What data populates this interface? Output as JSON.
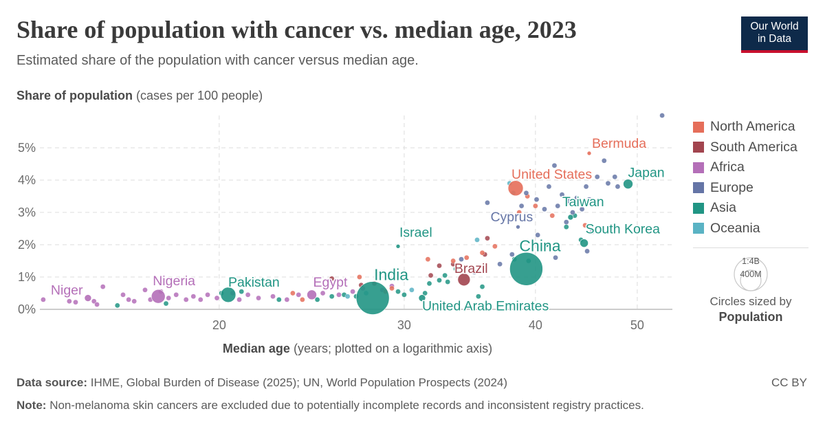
{
  "header": {
    "title": "Share of population with cancer vs. median age, 2023",
    "subtitle": "Estimated share of the population with cancer versus median age."
  },
  "logo": {
    "line1": "Our World",
    "line2": "in Data"
  },
  "footer": {
    "source_label": "Data source:",
    "source_text": "IHME, Global Burden of Disease (2025); UN, World Population Prospects (2024)",
    "note_label": "Note:",
    "note_text": "Non-melanoma skin cancers are excluded due to potentially incomplete records and inconsistent registry practices.",
    "license": "CC BY"
  },
  "size_legend": {
    "large": "1:4B",
    "small": "400M",
    "caption": "Circles sized by",
    "caption_bold": "Population"
  },
  "chart_data": {
    "type": "scatter",
    "title": "Share of population with cancer vs. median age, 2023",
    "xlabel_bold": "Median age",
    "xlabel_rest": "(years; plotted on a logarithmic axis)",
    "ylabel_bold": "Share of population",
    "ylabel_rest": "(cases per 100 people)",
    "x_scale": "log",
    "xlim": [
      13.5,
      54
    ],
    "ylim": [
      0,
      6
    ],
    "x_ticks": [
      20,
      30,
      40,
      50
    ],
    "y_ticks": [
      0,
      1,
      2,
      3,
      4,
      5
    ],
    "y_tick_labels": [
      "0%",
      "1%",
      "2%",
      "3%",
      "4%",
      "5%"
    ],
    "grid": true,
    "legend_position": "right",
    "colors": {
      "North America": "#e56e5a",
      "South America": "#a2454f",
      "Africa": "#b46fb8",
      "Europe": "#6575a6",
      "Asia": "#219584",
      "Oceania": "#5ab3c4"
    },
    "legend": [
      "North America",
      "South America",
      "Africa",
      "Europe",
      "Asia",
      "Oceania"
    ],
    "labeled_points": [
      {
        "name": "Niger",
        "region": "Africa",
        "x": 15.0,
        "y": 0.35,
        "r": 5
      },
      {
        "name": "Nigeria",
        "region": "Africa",
        "x": 17.5,
        "y": 0.4,
        "r": 10
      },
      {
        "name": "Pakistan",
        "region": "Asia",
        "x": 20.4,
        "y": 0.45,
        "r": 11
      },
      {
        "name": "Egypt",
        "region": "Africa",
        "x": 24.5,
        "y": 0.45,
        "r": 7
      },
      {
        "name": "India",
        "region": "Asia",
        "x": 28.0,
        "y": 0.35,
        "r": 24
      },
      {
        "name": "United Arab Emirates",
        "region": "Asia",
        "x": 31.2,
        "y": 0.35,
        "r": 5
      },
      {
        "name": "Israel",
        "region": "Asia",
        "x": 29.6,
        "y": 1.95,
        "r": 3
      },
      {
        "name": "Brazil",
        "region": "South America",
        "x": 34.2,
        "y": 0.92,
        "r": 9
      },
      {
        "name": "China",
        "region": "Asia",
        "x": 39.2,
        "y": 1.25,
        "r": 24
      },
      {
        "name": "Cyprus",
        "region": "Europe",
        "x": 38.5,
        "y": 2.55,
        "r": 3
      },
      {
        "name": "United States",
        "region": "North America",
        "x": 38.3,
        "y": 3.75,
        "r": 11
      },
      {
        "name": "Bermuda",
        "region": "North America",
        "x": 45.0,
        "y": 4.83,
        "r": 3
      },
      {
        "name": "Japan",
        "region": "Asia",
        "x": 49.0,
        "y": 3.88,
        "r": 7
      },
      {
        "name": "Taiwan",
        "region": "Asia",
        "x": 43.2,
        "y": 2.85,
        "r": 4
      },
      {
        "name": "South Korea",
        "region": "Asia",
        "x": 44.5,
        "y": 2.05,
        "r": 6
      }
    ],
    "other_points": {
      "Africa": [
        [
          13.6,
          0.3
        ],
        [
          14.4,
          0.25
        ],
        [
          14.6,
          0.22
        ],
        [
          15.2,
          0.25
        ],
        [
          15.5,
          0.7
        ],
        [
          15.3,
          0.15
        ],
        [
          16.2,
          0.45
        ],
        [
          16.4,
          0.3
        ],
        [
          16.6,
          0.25
        ],
        [
          17.0,
          0.6
        ],
        [
          17.2,
          0.3
        ],
        [
          17.6,
          0.55
        ],
        [
          17.9,
          0.35
        ],
        [
          18.2,
          0.45
        ],
        [
          18.6,
          0.3
        ],
        [
          18.9,
          0.4
        ],
        [
          19.2,
          0.3
        ],
        [
          19.5,
          0.45
        ],
        [
          19.9,
          0.35
        ],
        [
          20.6,
          0.5
        ],
        [
          20.9,
          0.3
        ],
        [
          21.3,
          0.45
        ],
        [
          21.8,
          0.35
        ],
        [
          22.5,
          0.4
        ],
        [
          23.2,
          0.3
        ],
        [
          23.8,
          0.45
        ],
        [
          25.1,
          0.5
        ],
        [
          26.0,
          0.45
        ],
        [
          26.8,
          0.55
        ],
        [
          27.4,
          0.65
        ],
        [
          28.6,
          0.6
        ],
        [
          29.2,
          0.72
        ]
      ],
      "Asia": [
        [
          16.0,
          0.12
        ],
        [
          17.8,
          0.18
        ],
        [
          20.1,
          0.5
        ],
        [
          21.0,
          0.55
        ],
        [
          22.8,
          0.3
        ],
        [
          24.8,
          0.3
        ],
        [
          25.6,
          0.4
        ],
        [
          26.3,
          0.45
        ],
        [
          27.0,
          0.4
        ],
        [
          29.6,
          0.55
        ],
        [
          30.0,
          0.45
        ],
        [
          31.4,
          0.5
        ],
        [
          31.7,
          0.8
        ],
        [
          32.4,
          0.9
        ],
        [
          32.8,
          1.05
        ],
        [
          33.0,
          0.85
        ],
        [
          33.6,
          1.25
        ],
        [
          35.3,
          0.4
        ],
        [
          35.6,
          0.7
        ],
        [
          38.2,
          1.55
        ],
        [
          39.4,
          1.5
        ],
        [
          41.0,
          2.0
        ],
        [
          42.8,
          2.55
        ],
        [
          43.6,
          2.9
        ],
        [
          44.2,
          2.15
        ]
      ],
      "South America": [
        [
          25.6,
          0.95
        ],
        [
          27.3,
          0.75
        ],
        [
          28.1,
          0.8
        ],
        [
          31.8,
          1.05
        ],
        [
          32.4,
          1.35
        ],
        [
          33.4,
          1.4
        ],
        [
          35.8,
          1.7
        ],
        [
          36.0,
          2.2
        ]
      ],
      "North America": [
        [
          23.5,
          0.5
        ],
        [
          24.0,
          0.3
        ],
        [
          27.2,
          1.0
        ],
        [
          28.8,
          0.55
        ],
        [
          29.2,
          0.65
        ],
        [
          31.6,
          1.55
        ],
        [
          33.4,
          1.5
        ],
        [
          34.4,
          1.6
        ],
        [
          35.6,
          1.75
        ],
        [
          36.6,
          1.95
        ],
        [
          38.6,
          3.0
        ],
        [
          39.3,
          3.5
        ],
        [
          40.0,
          3.2
        ],
        [
          41.5,
          2.9
        ],
        [
          44.6,
          2.6
        ]
      ],
      "Europe": [
        [
          34.0,
          1.55
        ],
        [
          35.0,
          1.15
        ],
        [
          36.0,
          3.3
        ],
        [
          37.0,
          1.4
        ],
        [
          38.0,
          1.7
        ],
        [
          38.8,
          3.2
        ],
        [
          39.2,
          3.6
        ],
        [
          40.1,
          3.4
        ],
        [
          40.8,
          3.1
        ],
        [
          41.2,
          3.8
        ],
        [
          41.7,
          4.45
        ],
        [
          42.0,
          3.2
        ],
        [
          42.4,
          3.55
        ],
        [
          42.8,
          2.7
        ],
        [
          43.0,
          3.35
        ],
        [
          43.4,
          3.0
        ],
        [
          43.8,
          3.45
        ],
        [
          44.0,
          4.15
        ],
        [
          44.3,
          3.1
        ],
        [
          44.7,
          3.8
        ],
        [
          45.0,
          3.4
        ],
        [
          45.3,
          2.4
        ],
        [
          45.8,
          4.1
        ],
        [
          46.5,
          4.6
        ],
        [
          46.9,
          3.9
        ],
        [
          47.6,
          4.1
        ],
        [
          47.9,
          3.8
        ],
        [
          44.8,
          1.8
        ],
        [
          41.8,
          1.6
        ],
        [
          40.2,
          2.3
        ],
        [
          52.8,
          6.0
        ]
      ],
      "Oceania": [
        [
          26.5,
          0.4
        ],
        [
          27.6,
          0.5
        ],
        [
          30.5,
          0.6
        ],
        [
          35.2,
          2.15
        ],
        [
          37.8,
          3.9
        ],
        [
          38.1,
          3.6
        ]
      ]
    }
  }
}
